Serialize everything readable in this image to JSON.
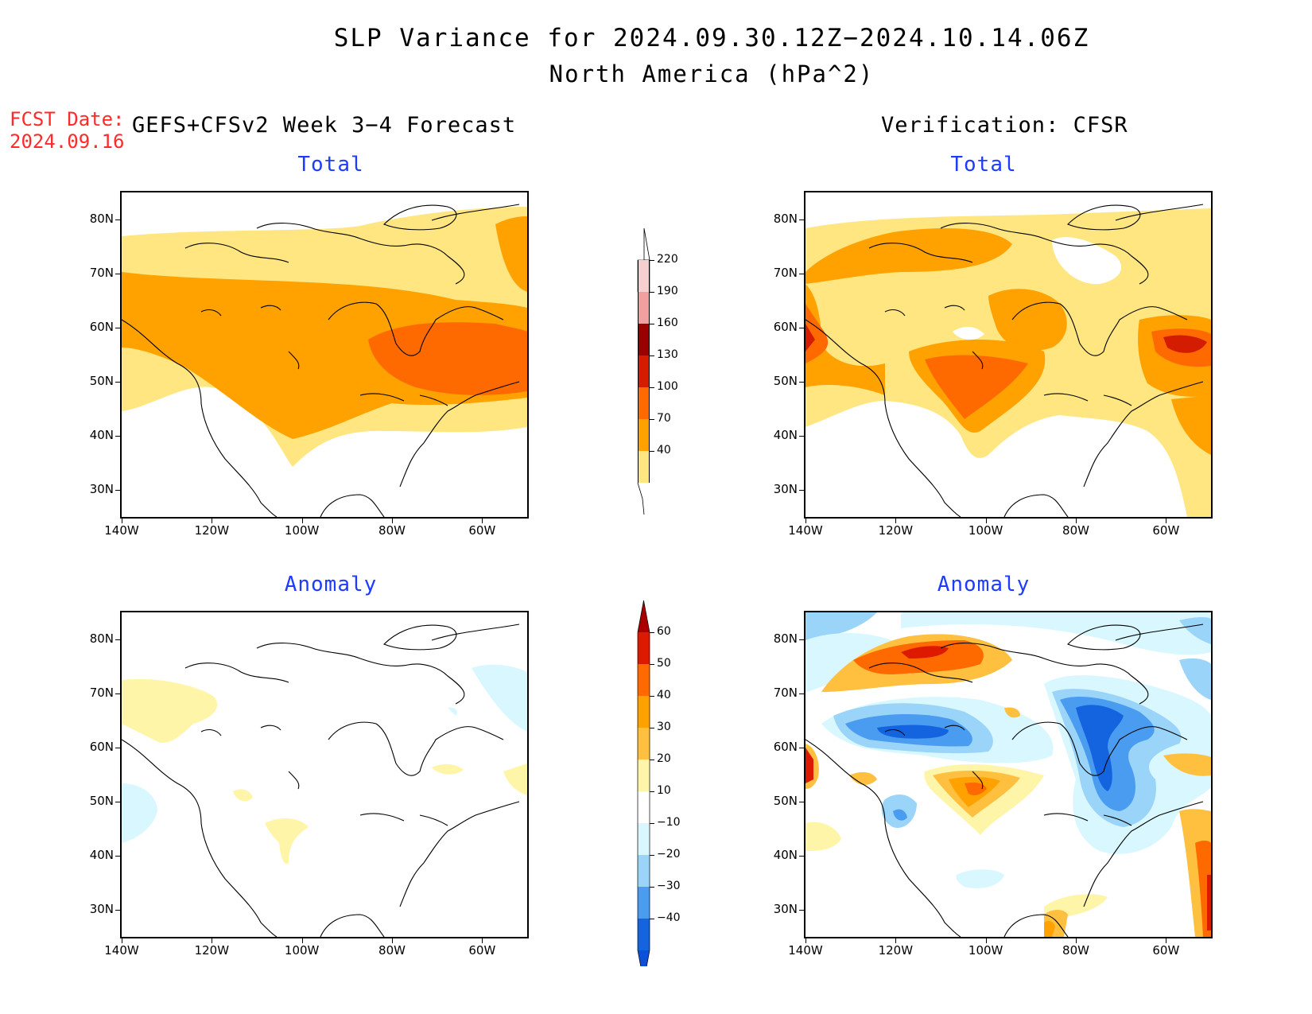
{
  "header": {
    "title_line1": "SLP Variance for 2024.09.30.12Z−2024.10.14.06Z",
    "title_line2": "North America (hPa^2)"
  },
  "fcst": {
    "label": "FCST Date:",
    "date": "2024.09.16"
  },
  "left_column_title": "GEFS+CFSv2 Week 3−4 Forecast",
  "right_column_title": "Verification: CFSR",
  "panels": {
    "forecast_total": {
      "title": "Total"
    },
    "verification_total": {
      "title": "Total"
    },
    "forecast_anomaly": {
      "title": "Anomaly"
    },
    "verification_anomaly": {
      "title": "Anomaly"
    }
  },
  "axes": {
    "lat_labels": [
      "80N",
      "70N",
      "60N",
      "50N",
      "40N",
      "30N"
    ],
    "lon_labels": [
      "140W",
      "120W",
      "100W",
      "80W",
      "60W"
    ],
    "lat_values": [
      80,
      70,
      60,
      50,
      40,
      30
    ],
    "lon_values": [
      -140,
      -120,
      -100,
      -80,
      -60
    ],
    "lat_range": [
      25,
      85
    ],
    "lon_range": [
      -140,
      -50
    ]
  },
  "colorbar_total": {
    "labels": [
      "220",
      "190",
      "160",
      "130",
      "100",
      "70",
      "40"
    ],
    "colors": [
      "#f6d0d0",
      "#f0a0a0",
      "#9b0000",
      "#d41c00",
      "#ff6a00",
      "#ffa200",
      "#ffe680"
    ]
  },
  "colorbar_anomaly": {
    "labels": [
      "60",
      "50",
      "40",
      "30",
      "20",
      "10",
      "−10",
      "−20",
      "−30",
      "−40"
    ],
    "colors": [
      "#a80000",
      "#dd1a00",
      "#ff6a00",
      "#ffa200",
      "#ffc040",
      "#fff5a8",
      "#ffffff",
      "#d8f7ff",
      "#9ad4f8",
      "#4a9cf0",
      "#1464e0",
      "#0a50d8"
    ]
  },
  "palette": {
    "title_blue": "#1d3cff",
    "fcst_red": "#ff2a2a"
  }
}
